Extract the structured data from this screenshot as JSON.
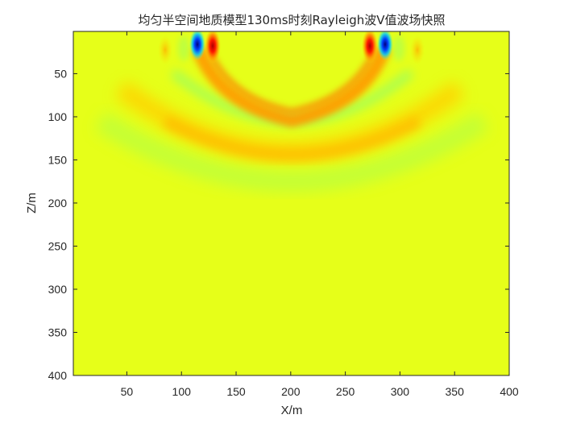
{
  "chart_data": {
    "type": "heatmap",
    "title": "均匀半空间地质模型130ms时刻Rayleigh波V值波场快照",
    "xlabel": "X/m",
    "ylabel": "Z/m",
    "xlim": [
      1,
      400
    ],
    "ylim": [
      1,
      400
    ],
    "y_axis_direction": "reversed (0 at top)",
    "xticks": [
      50,
      100,
      150,
      200,
      250,
      300,
      350,
      400
    ],
    "yticks": [
      50,
      100,
      150,
      200,
      250,
      300,
      350,
      400
    ],
    "colormap": "jet",
    "background_value_color": "#e6ff19",
    "colorbar": false,
    "grid": false,
    "features": [
      {
        "name": "surface source pair left",
        "x": [
          108,
          130
        ],
        "z": [
          1,
          25
        ],
        "polarity": "negative-blue / positive-red"
      },
      {
        "name": "surface source pair right",
        "x": [
          270,
          292
        ],
        "z": [
          1,
          25
        ],
        "polarity": "positive-red / negative-blue"
      },
      {
        "name": "shallow Rayleigh wave front",
        "x_range": [
          100,
          300
        ],
        "z_range": [
          30,
          100
        ],
        "sign": "positive (orange)"
      },
      {
        "name": "deep body wave front",
        "x_range": [
          50,
          350
        ],
        "z_range": [
          60,
          160
        ],
        "sign": "positive (yellow-orange)"
      },
      {
        "name": "trailing negative band",
        "x_range": [
          80,
          320
        ],
        "z_range": [
          60,
          200
        ],
        "sign": "slightly negative (green)"
      }
    ]
  }
}
